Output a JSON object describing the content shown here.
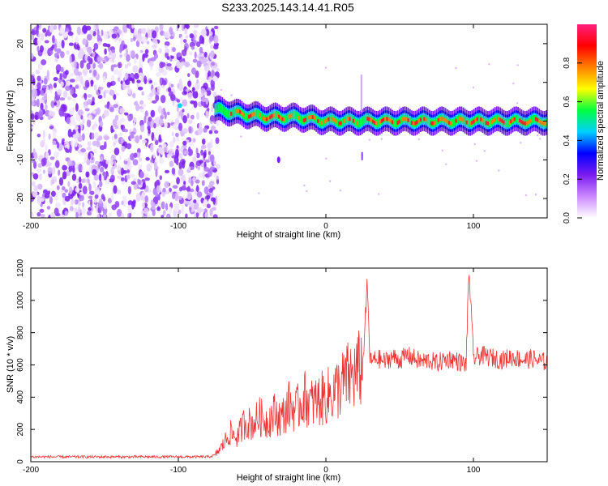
{
  "title": "S233.2025.143.14.41.R05",
  "chart_data": [
    {
      "type": "heatmap",
      "xlabel": "Height of straight line (km)",
      "ylabel": "Frequency (Hz)",
      "xlim": [
        -200,
        150
      ],
      "ylim": [
        -25,
        25
      ],
      "xticks": [
        -200,
        -100,
        0,
        100
      ],
      "yticks": [
        -20,
        -10,
        0,
        10,
        20
      ],
      "colorbar": {
        "label": "Normalized spectral amplitude",
        "range": [
          0,
          1
        ],
        "ticks": [
          "0.0",
          "0.2",
          "0.4",
          "0.6",
          "0.8"
        ],
        "colors": [
          "#ffffff",
          "#cc88ff",
          "#7a1cf0",
          "#0000ff",
          "#00d0ff",
          "#00ff40",
          "#ffff00",
          "#ff8000",
          "#ff0000",
          "#ff2080"
        ]
      },
      "ridge": {
        "description_x": [
          -75,
          -60,
          -40,
          -20,
          0,
          20,
          40,
          60,
          80,
          100,
          120,
          150
        ],
        "frequency": [
          3,
          2,
          1,
          1,
          0,
          0,
          0,
          0,
          0,
          0,
          0,
          0
        ]
      },
      "noise_region_x": [
        -200,
        -73
      ]
    },
    {
      "type": "line",
      "xlabel": "Height of straight line (km)",
      "ylabel": "SNR (10 * v/v)",
      "xlim": [
        -200,
        150
      ],
      "ylim": [
        0,
        1200
      ],
      "xticks": [
        -200,
        -100,
        0,
        100
      ],
      "yticks": [
        0,
        200,
        400,
        600,
        800,
        1000,
        1200
      ],
      "color": "#f03232",
      "series": [
        {
          "x": [
            -200,
            -180,
            -160,
            -140,
            -120,
            -100,
            -80,
            -75,
            -70,
            -65,
            -60,
            -55,
            -50,
            -45,
            -40,
            -35,
            -30,
            -25,
            -20,
            -15,
            -10,
            -5,
            0,
            5,
            10,
            15,
            20,
            25,
            28,
            30,
            35,
            40,
            45,
            50,
            55,
            60,
            65,
            70,
            75,
            80,
            85,
            90,
            95,
            97,
            100,
            105,
            110,
            115,
            120,
            125,
            130,
            135,
            140,
            145,
            150
          ],
          "values": [
            30,
            30,
            30,
            30,
            30,
            30,
            30,
            40,
            100,
            180,
            150,
            250,
            230,
            280,
            250,
            300,
            270,
            350,
            320,
            400,
            360,
            380,
            400,
            430,
            470,
            520,
            540,
            600,
            1100,
            620,
            640,
            620,
            650,
            630,
            660,
            640,
            620,
            630,
            610,
            630,
            640,
            620,
            600,
            1200,
            640,
            660,
            650,
            640,
            630,
            650,
            640,
            630,
            640,
            620,
            620
          ]
        }
      ]
    }
  ]
}
